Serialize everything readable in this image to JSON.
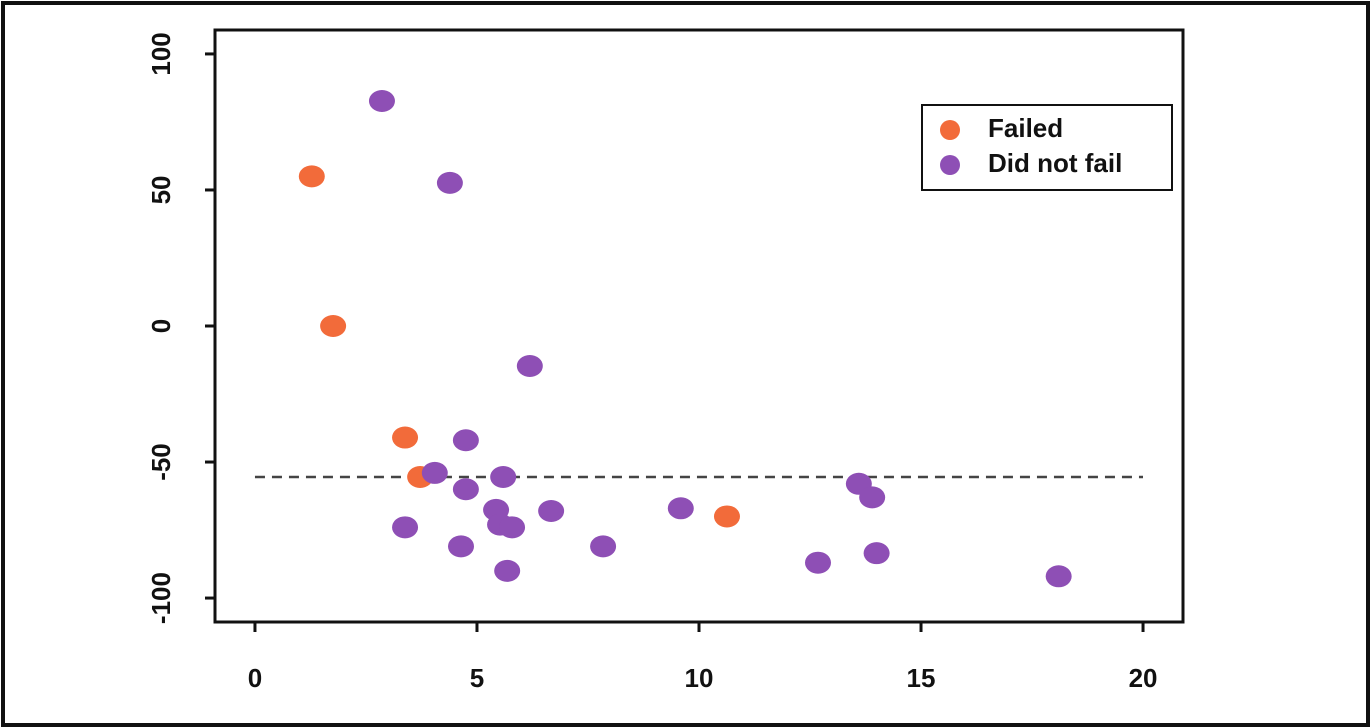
{
  "chart_data": {
    "type": "scatter",
    "series": [
      {
        "name": "Failed",
        "color": "#f26b3a",
        "x": [
          1.28,
          1.76,
          3.38,
          3.72,
          10.63
        ],
        "values": [
          55,
          0,
          -41,
          -55.5,
          -70
        ]
      },
      {
        "name": "Did not fail",
        "color": "#8e4fb5",
        "x": [
          2.86,
          4.39,
          6.19,
          4.75,
          4.05,
          5.59,
          4.75,
          3.38,
          5.43,
          5.52,
          5.79,
          6.67,
          4.64,
          5.68,
          7.84,
          9.59,
          13.6,
          13.9,
          14.0,
          12.68,
          18.1
        ],
        "values": [
          82.7,
          52.6,
          -14.7,
          -42,
          -54,
          -55.5,
          -60,
          -74,
          -67.6,
          -73,
          -74,
          -68,
          -81,
          -90,
          -81,
          -67,
          -58,
          -63,
          -83.5,
          -87,
          -92
        ]
      }
    ],
    "reference_line": -55.5,
    "xlim": [
      -0.9,
      20.9
    ],
    "ylim": [
      -108.8,
      108.8
    ],
    "xticks": [
      0,
      5,
      10,
      15,
      20
    ],
    "yticks": [
      -100,
      -50,
      0,
      50,
      100
    ],
    "legend": "top-right"
  }
}
